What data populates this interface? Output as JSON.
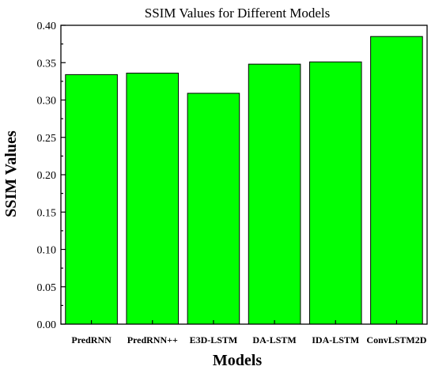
{
  "chart_data": {
    "type": "bar",
    "title": "SSIM Values for Different Models",
    "xlabel": "Models",
    "ylabel": "SSIM Values",
    "categories": [
      "PredRNN",
      "PredRNN++",
      "E3D-LSTM",
      "DA-LSTM",
      "IDA-LSTM",
      "ConvLSTM2D"
    ],
    "values": [
      0.334,
      0.336,
      0.309,
      0.348,
      0.351,
      0.385
    ],
    "ylim": [
      0,
      0.4
    ],
    "yticks": [
      "0.00",
      "0.05",
      "0.10",
      "0.15",
      "0.20",
      "0.25",
      "0.30",
      "0.35",
      "0.40"
    ],
    "bar_color": "#00FF00",
    "grid": false,
    "legend": "none"
  }
}
